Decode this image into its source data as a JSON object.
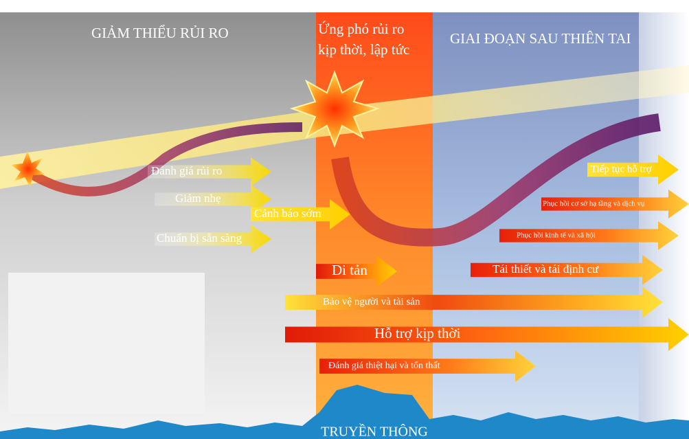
{
  "header": {
    "left": "GIẢM THIỂU RỦI RO",
    "middle": [
      "Ứng phó rủi ro",
      "kịp thời, lập tức"
    ],
    "right": "GIAI ĐOẠN SAU THIÊN TAI"
  },
  "arrows": [
    "Đánh giá rủi ro",
    "Giảm nhẹ",
    "Cảnh báo sớm",
    "Chuẩn bị sẵn sàng",
    "Di tản",
    "Bảo vệ người và tài sản",
    "Hỗ trợ kịp thời",
    "Đánh giá thiệt hại và tổn thất",
    "Tiếp tục hỗ trợ",
    "Phục hồi cơ sở hạ tầng và dịch vụ",
    "Phục hồi kinh tế và xã hội",
    "Tái thiết và tái định cư"
  ],
  "footer": "TRUYỀN THÔNG"
}
